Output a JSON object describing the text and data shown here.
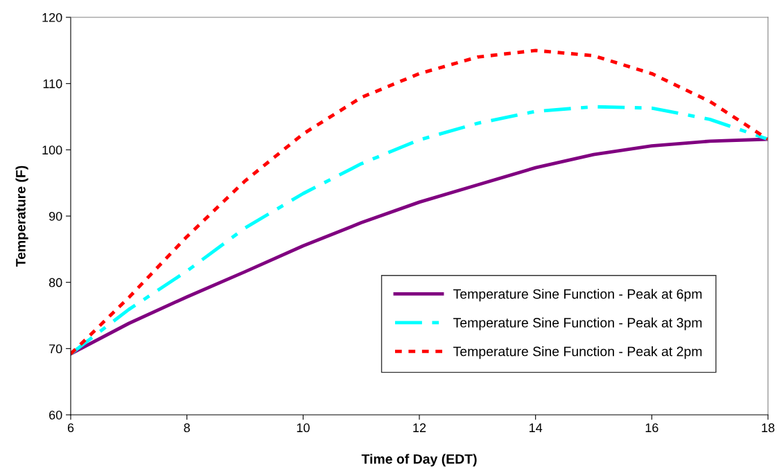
{
  "chart_data": {
    "type": "line",
    "xlabel": "Time of Day (EDT)",
    "ylabel": "Temperature (F)",
    "x": [
      6,
      7,
      8,
      9,
      10,
      11,
      12,
      13,
      14,
      15,
      16,
      17,
      18
    ],
    "xlim": [
      6,
      18
    ],
    "xticks": [
      6,
      8,
      10,
      12,
      14,
      16,
      18
    ],
    "ylim": [
      60,
      120
    ],
    "yticks": [
      60,
      70,
      80,
      90,
      100,
      110,
      120
    ],
    "grid": false,
    "legend": "bottom right",
    "marker": "none",
    "series": [
      {
        "name": "Temperature Sine Function - Peak at 6pm",
        "color": "#800080",
        "line_style": "solid",
        "values": [
          69.2,
          73.8,
          77.8,
          81.6,
          85.5,
          89.0,
          92.1,
          94.7,
          97.3,
          99.3,
          100.6,
          101.3,
          101.6
        ]
      },
      {
        "name": "Temperature Sine Function - Peak at 3pm",
        "color": "#00ffff",
        "line_style": "dashed",
        "values": [
          69.2,
          75.9,
          81.7,
          88.2,
          93.4,
          97.9,
          101.5,
          104.0,
          105.8,
          106.5,
          106.3,
          104.6,
          101.6
        ]
      },
      {
        "name": "Temperature Sine Function - Peak at 2pm",
        "color": "#ff0000",
        "line_style": "dotted",
        "values": [
          69.2,
          77.7,
          86.9,
          95.3,
          102.4,
          107.9,
          111.5,
          114.0,
          115.0,
          114.2,
          111.5,
          107.3,
          101.6
        ]
      }
    ]
  }
}
